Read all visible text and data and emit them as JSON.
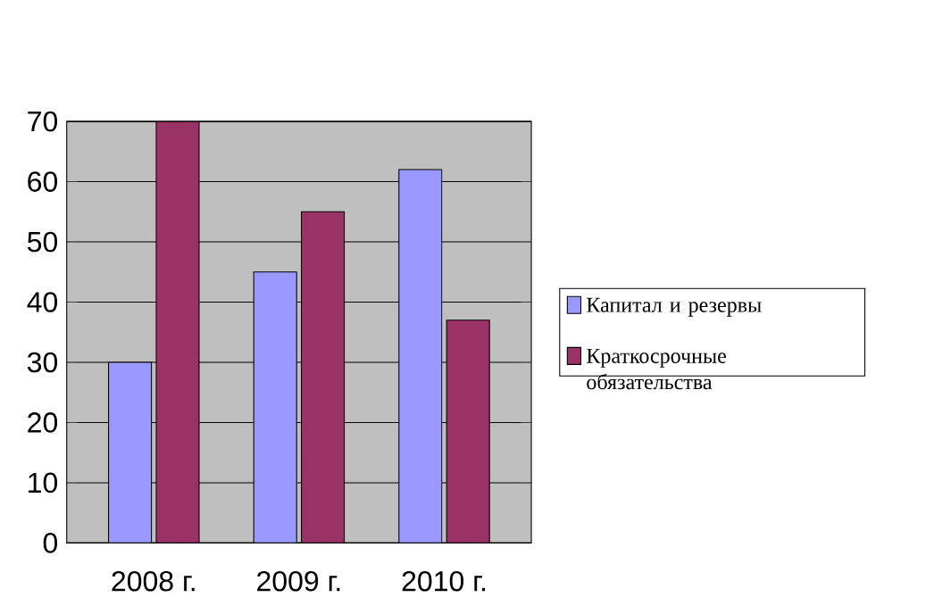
{
  "chart_data": {
    "type": "bar",
    "categories": [
      "2008 г.",
      "2009 г.",
      "2010 г."
    ],
    "series": [
      {
        "name": "Капитал и резервы",
        "color": "#9999ff",
        "values": [
          30,
          45,
          62
        ]
      },
      {
        "name": "Краткосрочные обязательства",
        "color": "#993366",
        "values": [
          70,
          55,
          37
        ]
      }
    ],
    "ylim": [
      0,
      70
    ],
    "yticks": [
      0,
      10,
      20,
      30,
      40,
      50,
      60,
      70
    ],
    "grid": "y",
    "legend": "right"
  }
}
